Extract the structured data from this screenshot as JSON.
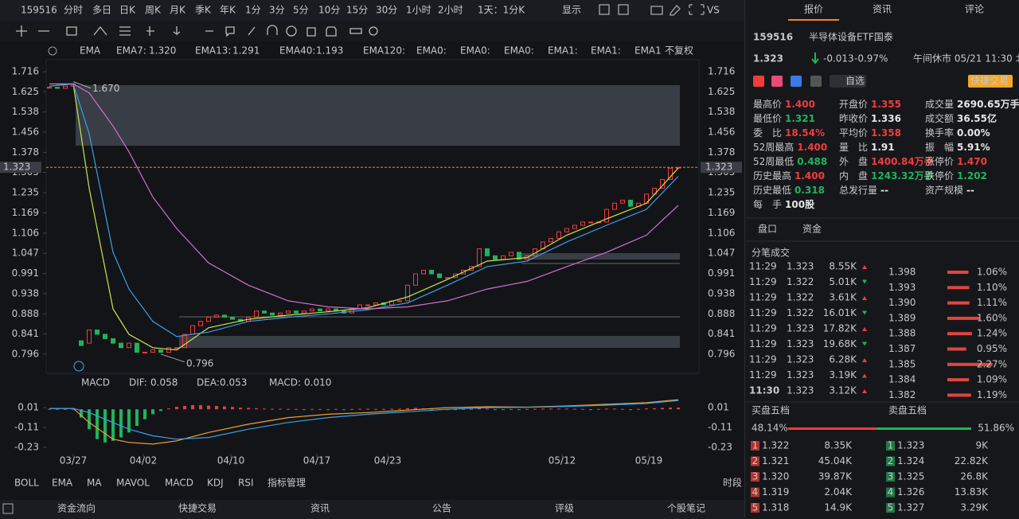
{
  "toolbar": {
    "symbol": "159516",
    "periods": [
      "分时",
      "多日",
      "日K",
      "周K",
      "月K",
      "季K",
      "年K",
      "1分",
      "3分",
      "5分",
      "10分",
      "15分",
      "30分",
      "1小时",
      "2小时",
      "1天：1分K"
    ],
    "active": 13,
    "display": "显示",
    "vs": "VS"
  },
  "chart_data": {
    "type": "candlestick",
    "log_scale": true,
    "xlim": [
      0,
      79
    ],
    "close": [
      1.645,
      1.64,
      1.65,
      1.66,
      0.82,
      0.85,
      0.84,
      0.83,
      0.82,
      0.81,
      0.82,
      0.8,
      0.8,
      0.805,
      0.8,
      0.81,
      0.81,
      0.84,
      0.86,
      0.87,
      0.88,
      0.885,
      0.88,
      0.875,
      0.87,
      0.88,
      0.895,
      0.89,
      0.885,
      0.89,
      0.895,
      0.89,
      0.895,
      0.9,
      0.895,
      0.9,
      0.895,
      0.89,
      0.9,
      0.91,
      0.91,
      0.915,
      0.91,
      0.92,
      0.92,
      0.96,
      0.99,
      1.0,
      0.99,
      0.98,
      0.98,
      0.99,
      1.0,
      1.01,
      1.06,
      1.04,
      1.03,
      1.04,
      1.05,
      1.03,
      1.04,
      1.06,
      1.08,
      1.09,
      1.11,
      1.12,
      1.13,
      1.14,
      1.14,
      1.14,
      1.18,
      1.2,
      1.21,
      1.19,
      1.2,
      1.23,
      1.25,
      1.28,
      1.32,
      1.323
    ],
    "up_color": "#f23c3c",
    "down_color": "#21b35b",
    "ylim": [
      0.757,
      1.773
    ],
    "yticks": [
      1.716,
      1.625,
      1.538,
      1.456,
      1.378,
      1.305,
      1.235,
      1.169,
      1.106,
      1.047,
      0.991,
      0.938,
      0.888,
      0.841,
      0.796
    ],
    "xticks": [
      {
        "value": 3,
        "label": "03/27"
      },
      {
        "value": 11.8,
        "label": "04/02"
      },
      {
        "value": 22.8,
        "label": "04/10"
      },
      {
        "value": 33.6,
        "label": "04/17"
      },
      {
        "value": 42.5,
        "label": "04/23"
      },
      {
        "value": 64.4,
        "label": "05/12"
      },
      {
        "value": 75.3,
        "label": "05/19"
      }
    ],
    "indicator": "EMA",
    "high": {
      "x": 3,
      "value": 1.67,
      "label": "1.670"
    },
    "low": {
      "x": 14,
      "value": 0.796
    },
    "last_price": 1.323,
    "series": [
      {
        "name": "EMA7:",
        "legend_value": "1.320",
        "color": "#c8e64a",
        "x": [
          0,
          3,
          5,
          8,
          10,
          13,
          16,
          20,
          25,
          30,
          35,
          40,
          45,
          50,
          55,
          60,
          65,
          70,
          75,
          79
        ],
        "values": [
          1.65,
          1.66,
          1.25,
          0.9,
          0.84,
          0.81,
          0.805,
          0.855,
          0.875,
          0.885,
          0.893,
          0.903,
          0.93,
          0.975,
          1.025,
          1.035,
          1.1,
          1.15,
          1.2,
          1.32
        ]
      },
      {
        "name": "EMA13:",
        "legend_value": "1.291",
        "color": "#3aa0e8",
        "x": [
          0,
          3,
          5,
          8,
          10,
          13,
          16,
          20,
          25,
          30,
          35,
          40,
          45,
          50,
          55,
          60,
          65,
          70,
          75,
          79
        ],
        "values": [
          1.65,
          1.66,
          1.45,
          1.05,
          0.95,
          0.87,
          0.835,
          0.845,
          0.87,
          0.88,
          0.888,
          0.898,
          0.915,
          0.96,
          1.01,
          1.025,
          1.08,
          1.13,
          1.18,
          1.291
        ]
      },
      {
        "name": "EMA40:",
        "legend_value": "1.193",
        "color": "#d070d0",
        "x": [
          0,
          3,
          5,
          8,
          10,
          13,
          16,
          20,
          25,
          30,
          35,
          40,
          45,
          50,
          55,
          60,
          65,
          70,
          75,
          79
        ],
        "values": [
          1.66,
          1.66,
          1.62,
          1.48,
          1.38,
          1.22,
          1.12,
          1.02,
          0.96,
          0.92,
          0.905,
          0.9,
          0.905,
          0.92,
          0.95,
          0.97,
          1.01,
          1.05,
          1.1,
          1.193
        ]
      }
    ],
    "inactive": [
      {
        "name": "EMA120:",
        "color": "#2f5f9a"
      },
      {
        "name": "EMA0:",
        "color": "#2f7a70"
      },
      {
        "name": "EMA0:",
        "color": "#9a3a3a"
      },
      {
        "name": "EMA0:",
        "color": "#2f8a9a"
      },
      {
        "name": "EMA1:",
        "color": "#666a70"
      },
      {
        "name": "EMA1:",
        "color": "#6a4a9a"
      },
      {
        "name": "EMA1",
        "color": "#c89a2a"
      }
    ],
    "adjust": "不复权",
    "macd": {
      "title": "MACD",
      "ylim": [
        -0.268,
        0.092
      ],
      "yticks": [
        0.01,
        -0.11,
        -0.23
      ],
      "hist_name": "MACD:",
      "hist_value": "0.010",
      "hist_color": "#d070d0",
      "histogram": [
        0.002,
        0.002,
        0.002,
        0.002,
        -0.05,
        -0.12,
        -0.18,
        -0.2,
        -0.19,
        -0.17,
        -0.14,
        -0.1,
        -0.06,
        -0.03,
        -0.01,
        0.005,
        0.015,
        0.02,
        0.025,
        0.025,
        0.022,
        0.02,
        0.017,
        0.014,
        0.01,
        0.008,
        0.006,
        0.004,
        0.003,
        0.003,
        0.002,
        0.002,
        -0.002,
        0.002,
        0.002,
        -0.002,
        0.002,
        -0.002,
        0.002,
        0.003,
        0.003,
        0.002,
        0.002,
        0.003,
        0.003,
        0.006,
        0.008,
        0.006,
        0.003,
        -0.002,
        -0.003,
        -0.002,
        0.002,
        0.003,
        0.006,
        0.004,
        -0.002,
        -0.003,
        0.002,
        -0.002,
        0.002,
        0.003,
        0.004,
        0.004,
        0.004,
        0.004,
        0.003,
        0.002,
        -0.002,
        0.002,
        0.004,
        0.004,
        0.002,
        -0.002,
        0.002,
        0.005,
        0.006,
        0.008,
        0.01,
        0.01
      ],
      "lines": [
        {
          "name": "DIF:",
          "legend_value": "0.058",
          "color": "#f0a030",
          "x": [
            0,
            3,
            5,
            8,
            10,
            13,
            16,
            20,
            25,
            30,
            35,
            40,
            45,
            50,
            55,
            60,
            65,
            70,
            75,
            79
          ],
          "values": [
            0.005,
            0.005,
            -0.08,
            -0.18,
            -0.2,
            -0.21,
            -0.19,
            -0.14,
            -0.09,
            -0.05,
            -0.03,
            -0.02,
            -0.005,
            0.01,
            0.015,
            0.013,
            0.02,
            0.03,
            0.04,
            0.058
          ]
        },
        {
          "name": "DEA:",
          "legend_value": "0.053",
          "color": "#3aa0e8",
          "x": [
            0,
            3,
            5,
            8,
            10,
            13,
            16,
            20,
            25,
            30,
            35,
            40,
            45,
            50,
            55,
            60,
            65,
            70,
            75,
            79
          ],
          "values": [
            0.005,
            0.005,
            -0.02,
            -0.08,
            -0.12,
            -0.16,
            -0.18,
            -0.17,
            -0.12,
            -0.08,
            -0.05,
            -0.03,
            -0.015,
            0,
            0.01,
            0.012,
            0.017,
            0.025,
            0.035,
            0.053
          ]
        }
      ]
    }
  },
  "indicators": {
    "tabs": [
      "BOLL",
      "EMA",
      "MA",
      "MAVOL",
      "MACD",
      "KDJ",
      "RSI",
      "指标管理"
    ],
    "active": [
      1,
      4,
      7
    ],
    "period": "时段"
  },
  "footer": [
    "资金流向",
    "快捷交易",
    "资讯",
    "公告",
    "评级",
    "个股笔记"
  ],
  "panel": {
    "tabs": [
      "报价",
      "资讯",
      "评论"
    ],
    "code": "159516",
    "name": "半导体设备ETF国泰",
    "price": "1.323",
    "change": "-0.013",
    "change_pct": "-0.97%",
    "status": "午间休市 05/21 11:30 北京",
    "watch": "自选",
    "trade": "快捷交易",
    "stats": [
      [
        {
          "label": "最高价",
          "value": "1.400",
          "color": "#f23c3c"
        },
        {
          "label": "最低价",
          "value": "1.321",
          "color": "#21b35b"
        },
        {
          "label": "委　比",
          "value": "18.54%",
          "color": "#f23c3c"
        },
        {
          "label": "52周最高",
          "value": "1.400",
          "color": "#f23c3c"
        },
        {
          "label": "52周最低",
          "value": "0.488",
          "color": "#21b35b"
        },
        {
          "label": "历史最高",
          "value": "1.400",
          "color": "#f23c3c"
        },
        {
          "label": "历史最低",
          "value": "0.318",
          "color": "#21b35b"
        },
        {
          "label": "每　手",
          "value": "100股",
          "color": "#e6e6e6"
        }
      ],
      [
        {
          "label": "开盘价",
          "value": "1.355",
          "color": "#f23c3c"
        },
        {
          "label": "昨收价",
          "value": "1.336",
          "color": "#e6e6e6"
        },
        {
          "label": "平均价",
          "value": "1.358",
          "color": "#f23c3c"
        },
        {
          "label": "量　比",
          "value": "1.91",
          "color": "#e6e6e6"
        },
        {
          "label": "外　盘",
          "value": "1400.84万手",
          "color": "#f23c3c"
        },
        {
          "label": "内　盘",
          "value": "1243.32万手",
          "color": "#21b35b"
        },
        {
          "label": "总发行量",
          "value": "--",
          "color": "#e6e6e6"
        }
      ],
      [
        {
          "label": "成交量",
          "value": "2690.65万手",
          "color": "#e6e6e6"
        },
        {
          "label": "成交额",
          "value": "36.55亿",
          "color": "#e6e6e6"
        },
        {
          "label": "换手率",
          "value": "0.00%",
          "color": "#e6e6e6"
        },
        {
          "label": "振　幅",
          "value": "5.91%",
          "color": "#e6e6e6"
        },
        {
          "label": "涨停价",
          "value": "1.470",
          "color": "#f23c3c"
        },
        {
          "label": "跌停价",
          "value": "1.202",
          "color": "#21b35b"
        },
        {
          "label": "资产规模",
          "value": "--",
          "color": "#e6e6e6"
        }
      ]
    ],
    "sub_tabs": [
      "盘口",
      "资金"
    ],
    "trades_title": "分笔成交",
    "trades": [
      {
        "time": "11:29",
        "price": "1.323",
        "volume": "8.55K",
        "color": "#f23c3c"
      },
      {
        "time": "11:29",
        "price": "1.322",
        "volume": "5.01K",
        "color": "#21b35b"
      },
      {
        "time": "11:29",
        "price": "1.322",
        "volume": "3.61K",
        "color": "#f23c3c"
      },
      {
        "time": "11:29",
        "price": "1.322",
        "volume": "16.01K",
        "color": "#21b35b"
      },
      {
        "time": "11:29",
        "price": "1.323",
        "volume": "17.82K",
        "color": "#f23c3c"
      },
      {
        "time": "11:29",
        "price": "1.323",
        "volume": "19.68K",
        "color": "#21b35b"
      },
      {
        "time": "11:29",
        "price": "1.323",
        "volume": "6.28K",
        "color": "#f23c3c"
      },
      {
        "time": "11:29",
        "price": "1.323",
        "volume": "3.19K",
        "color": "#f23c3c"
      },
      {
        "time": "11:30",
        "price": "1.323",
        "volume": "3.12K",
        "color": "#f23c3c"
      }
    ],
    "distribution": [
      {
        "price": "1.398",
        "pct": 1.06,
        "label": "1.06%"
      },
      {
        "price": "1.393",
        "pct": 1.1,
        "label": "1.10%"
      },
      {
        "price": "1.390",
        "pct": 1.11,
        "label": "1.11%"
      },
      {
        "price": "1.389",
        "pct": 1.6,
        "label": "1.60%"
      },
      {
        "price": "1.388",
        "pct": 1.24,
        "label": "1.24%"
      },
      {
        "price": "1.387",
        "pct": 0.95,
        "label": "0.95%"
      },
      {
        "price": "1.385",
        "pct": 2.27,
        "label": "2.27%"
      },
      {
        "price": "1.384",
        "pct": 1.09,
        "label": "1.09%"
      },
      {
        "price": "1.382",
        "pct": 1.19,
        "label": "1.19%"
      }
    ],
    "bid_title": "买盘五档",
    "ask_title": "卖盘五档",
    "bid_ratio": {
      "value": 48.14,
      "label": "48.14%"
    },
    "ask_ratio": {
      "value": 51.86,
      "label": "51.86%"
    },
    "bids": [
      {
        "level": 1,
        "price": "1.322",
        "volume": "8.35K"
      },
      {
        "level": 2,
        "price": "1.321",
        "volume": "45.04K"
      },
      {
        "level": 3,
        "price": "1.320",
        "volume": "39.87K"
      },
      {
        "level": 4,
        "price": "1.319",
        "volume": "2.04K"
      },
      {
        "level": 5,
        "price": "1.318",
        "volume": "14.9K"
      }
    ],
    "asks": [
      {
        "level": 1,
        "price": "1.323",
        "volume": "9K"
      },
      {
        "level": 2,
        "price": "1.324",
        "volume": "22.82K"
      },
      {
        "level": 3,
        "price": "1.325",
        "volume": "26.8K"
      },
      {
        "level": 4,
        "price": "1.326",
        "volume": "13.83K"
      },
      {
        "level": 5,
        "price": "1.327",
        "volume": "3.29K"
      }
    ]
  }
}
